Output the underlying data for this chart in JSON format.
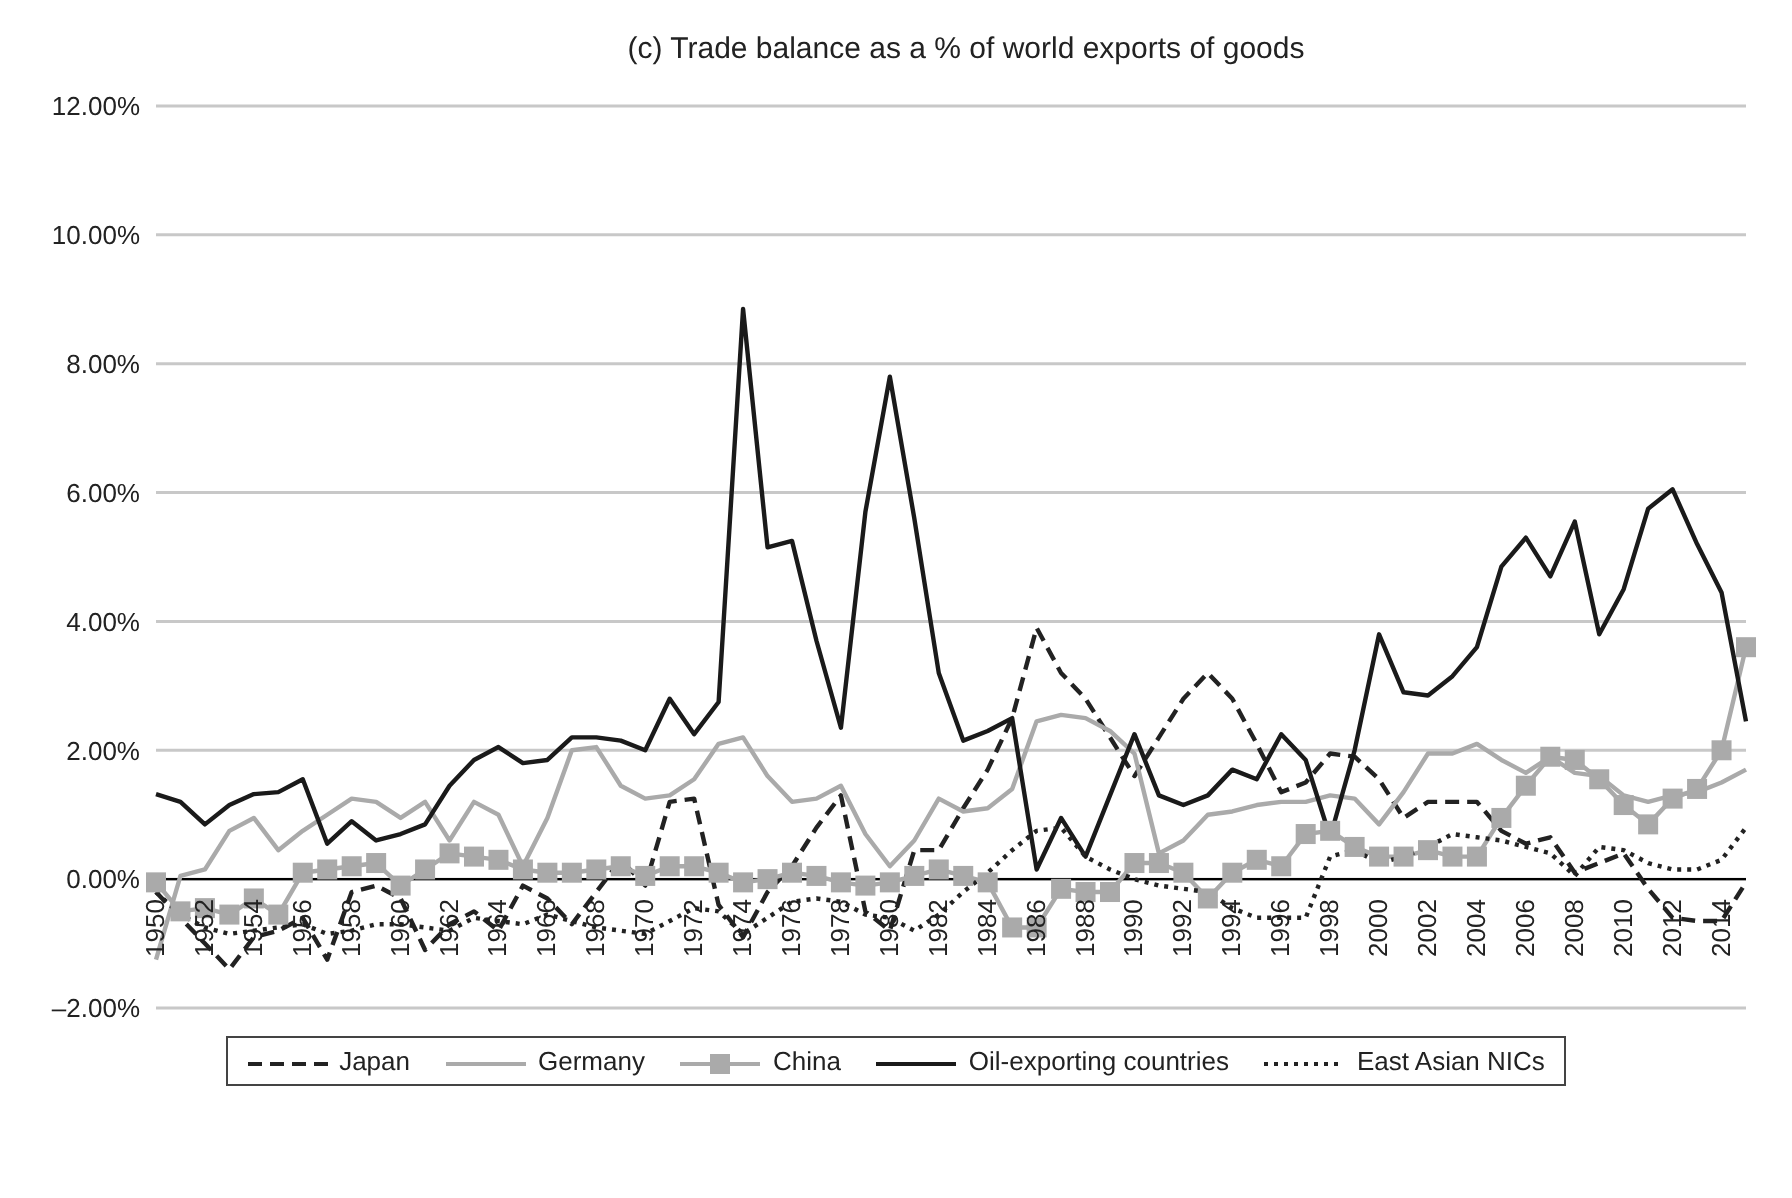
{
  "chart_data": {
    "type": "line",
    "title": "(c) Trade balance as a % of world exports of goods",
    "categories": [
      "1950",
      null,
      "1952",
      null,
      "1954",
      null,
      "1956",
      null,
      "1958",
      null,
      "1960",
      null,
      "1962",
      null,
      "1964",
      null,
      "1966",
      null,
      "1968",
      null,
      "1970",
      null,
      "1972",
      null,
      "1974",
      null,
      "1976",
      null,
      "1978",
      null,
      "1980",
      null,
      "1982",
      null,
      "1984",
      null,
      "1986",
      null,
      "1988",
      null,
      "1990",
      null,
      "1992",
      null,
      "1994",
      null,
      "1996",
      null,
      "1998",
      null,
      "2000",
      null,
      "2002",
      null,
      "2004",
      null,
      "2006",
      null,
      "2008",
      null,
      "2010",
      null,
      "2012",
      null,
      "2014",
      null
    ],
    "series": [
      {
        "name": "Japan",
        "color": "#222222",
        "line_style": "dashed",
        "marker": "none",
        "values": [
          -0.2,
          -0.6,
          -1.0,
          -1.4,
          -0.9,
          -0.8,
          -0.6,
          -1.25,
          -0.2,
          -0.1,
          -0.3,
          -1.1,
          -0.7,
          -0.5,
          -0.8,
          -0.1,
          -0.3,
          -0.7,
          -0.2,
          0.3,
          -0.1,
          1.2,
          1.25,
          -0.4,
          -0.9,
          -0.2,
          0.2,
          0.8,
          1.3,
          -0.5,
          -0.8,
          0.45,
          0.45,
          1.1,
          1.7,
          2.5,
          3.9,
          3.2,
          2.8,
          2.2,
          1.6,
          2.2,
          2.8,
          3.2,
          2.8,
          2.1,
          1.35,
          1.5,
          1.95,
          1.9,
          1.55,
          0.95,
          1.2,
          1.2,
          1.2,
          0.75,
          0.55,
          0.65,
          0.1,
          0.25,
          0.4,
          -0.15,
          -0.6,
          -0.65,
          -0.65,
          -0.05
        ]
      },
      {
        "name": "Germany",
        "color": "#aaaaaa",
        "line_style": "solid",
        "marker": "none",
        "values": [
          -1.25,
          0.05,
          0.15,
          0.75,
          0.95,
          0.45,
          0.75,
          1.0,
          1.25,
          1.2,
          0.95,
          1.2,
          0.6,
          1.2,
          1.0,
          0.2,
          0.95,
          2.0,
          2.05,
          1.45,
          1.25,
          1.3,
          1.55,
          2.1,
          2.2,
          1.6,
          1.2,
          1.25,
          1.45,
          0.7,
          0.2,
          0.6,
          1.25,
          1.05,
          1.1,
          1.4,
          2.45,
          2.55,
          2.5,
          2.3,
          1.95,
          0.4,
          0.6,
          1.0,
          1.05,
          1.15,
          1.2,
          1.2,
          1.3,
          1.25,
          0.85,
          1.35,
          1.95,
          1.95,
          2.1,
          1.85,
          1.65,
          1.9,
          1.65,
          1.6,
          1.3,
          1.2,
          1.3,
          1.35,
          1.5,
          1.7
        ]
      },
      {
        "name": "China",
        "color": "#aaaaaa",
        "line_style": "solid",
        "marker": "square",
        "values": [
          -0.05,
          -0.5,
          -0.45,
          -0.55,
          -0.3,
          -0.55,
          0.1,
          0.15,
          0.2,
          0.25,
          -0.1,
          0.15,
          0.4,
          0.35,
          0.3,
          0.15,
          0.1,
          0.1,
          0.15,
          0.2,
          0.05,
          0.2,
          0.2,
          0.1,
          -0.05,
          0.0,
          0.1,
          0.05,
          -0.05,
          -0.1,
          -0.05,
          0.05,
          0.15,
          0.05,
          -0.05,
          -0.75,
          -0.75,
          -0.15,
          -0.2,
          -0.2,
          0.25,
          0.25,
          0.1,
          -0.3,
          0.1,
          0.3,
          0.2,
          0.7,
          0.75,
          0.5,
          0.35,
          0.35,
          0.45,
          0.35,
          0.35,
          0.95,
          1.45,
          1.9,
          1.85,
          1.55,
          1.15,
          0.85,
          1.25,
          1.4,
          2.0,
          3.6
        ]
      },
      {
        "name": "Oil-exporting countries",
        "color": "#1a1a1a",
        "line_style": "solid",
        "marker": "none",
        "values": [
          1.32,
          1.2,
          0.85,
          1.15,
          1.32,
          1.35,
          1.55,
          0.55,
          0.9,
          0.6,
          0.7,
          0.85,
          1.45,
          1.85,
          2.05,
          1.8,
          1.85,
          2.2,
          2.2,
          2.15,
          2.0,
          2.8,
          2.25,
          2.75,
          8.85,
          5.15,
          5.25,
          3.7,
          2.35,
          5.7,
          7.8,
          5.6,
          3.2,
          2.15,
          2.3,
          2.5,
          0.15,
          0.95,
          0.35,
          1.3,
          2.25,
          1.3,
          1.15,
          1.3,
          1.7,
          1.55,
          2.25,
          1.85,
          0.65,
          2.0,
          3.8,
          2.9,
          2.85,
          3.15,
          3.6,
          4.85,
          5.3,
          4.7,
          5.55,
          3.8,
          4.5,
          5.75,
          6.05,
          5.2,
          4.45,
          2.45
        ]
      },
      {
        "name": "East Asian NICs",
        "color": "#222222",
        "line_style": "dotted",
        "marker": "none",
        "values": [
          -0.2,
          -0.55,
          -0.75,
          -0.85,
          -0.8,
          -0.75,
          -0.7,
          -0.85,
          -0.8,
          -0.7,
          -0.7,
          -0.75,
          -0.8,
          -0.6,
          -0.65,
          -0.7,
          -0.55,
          -0.65,
          -0.75,
          -0.8,
          -0.85,
          -0.65,
          -0.45,
          -0.5,
          -0.85,
          -0.6,
          -0.35,
          -0.3,
          -0.35,
          -0.55,
          -0.6,
          -0.8,
          -0.55,
          -0.2,
          0.1,
          0.45,
          0.75,
          0.8,
          0.35,
          0.15,
          0.0,
          -0.1,
          -0.15,
          -0.2,
          -0.45,
          -0.6,
          -0.6,
          -0.6,
          0.35,
          0.45,
          0.25,
          0.35,
          0.5,
          0.7,
          0.65,
          0.6,
          0.5,
          0.4,
          0.05,
          0.5,
          0.45,
          0.25,
          0.15,
          0.15,
          0.3,
          0.8
        ]
      }
    ],
    "ylim": [
      -2,
      12
    ],
    "yticks": [
      {
        "value": -2,
        "label": "–2.00%"
      },
      {
        "value": 0,
        "label": "0.00%"
      },
      {
        "value": 2,
        "label": "2.00%"
      },
      {
        "value": 4,
        "label": "4.00%"
      },
      {
        "value": 6,
        "label": "6.00%"
      },
      {
        "value": 8,
        "label": "8.00%"
      },
      {
        "value": 10,
        "label": "10.00%"
      },
      {
        "value": 12,
        "label": "12.00%"
      }
    ],
    "grid": "y",
    "legend": "bottom"
  }
}
